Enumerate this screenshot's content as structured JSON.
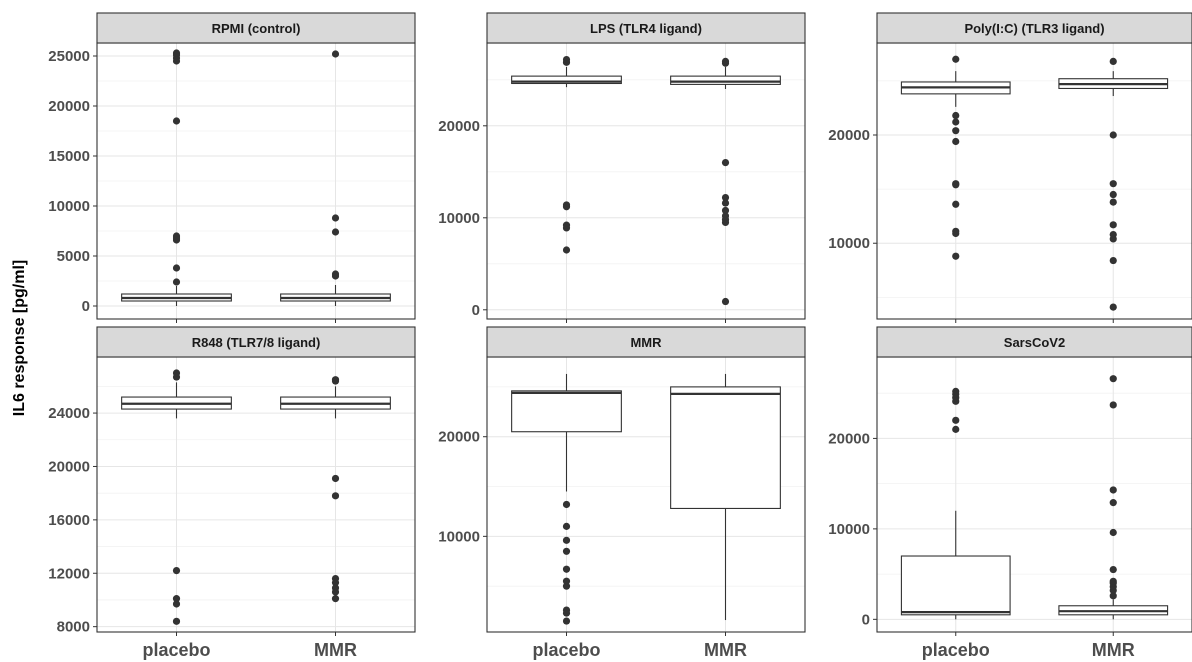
{
  "chart_data": {
    "type": "boxplot",
    "ylabel": "IL6 response [pg/ml]",
    "categories": [
      "placebo",
      "MMR"
    ],
    "grid": true,
    "panels": [
      {
        "title": "RPMI (control)",
        "ylim": [
          -1300,
          26300
        ],
        "yticks": [
          0,
          5000,
          10000,
          15000,
          20000,
          25000
        ],
        "boxes": [
          {
            "group": "placebo",
            "q1": 500,
            "median": 800,
            "q3": 1200,
            "whisker_low": 0,
            "whisker_high": 2000,
            "outliers": [
              2400,
              3800,
              6600,
              6800,
              7000,
              18500,
              24500,
              24800,
              25100,
              25300
            ]
          },
          {
            "group": "MMR",
            "q1": 500,
            "median": 800,
            "q3": 1200,
            "whisker_low": 0,
            "whisker_high": 2100,
            "outliers": [
              3000,
              3200,
              7400,
              8800,
              25200
            ]
          }
        ]
      },
      {
        "title": "LPS (TLR4 ligand)",
        "ylim": [
          -1000,
          29000
        ],
        "yticks": [
          0,
          10000,
          20000
        ],
        "boxes": [
          {
            "group": "placebo",
            "q1": 24600,
            "median": 24800,
            "q3": 25400,
            "whisker_low": 24200,
            "whisker_high": 26400,
            "outliers": [
              6500,
              8900,
              9200,
              11200,
              11400,
              26900,
              27200
            ]
          },
          {
            "group": "MMR",
            "q1": 24500,
            "median": 24800,
            "q3": 25400,
            "whisker_low": 24000,
            "whisker_high": 26400,
            "outliers": [
              900,
              9500,
              9800,
              10200,
              10800,
              11600,
              12200,
              16000,
              26800,
              27000
            ]
          }
        ]
      },
      {
        "title": "Poly(I:C) (TLR3 ligand)",
        "ylim": [
          3000,
          28500
        ],
        "yticks": [
          10000,
          20000
        ],
        "boxes": [
          {
            "group": "placebo",
            "q1": 23800,
            "median": 24400,
            "q3": 24900,
            "whisker_low": 22600,
            "whisker_high": 25900,
            "outliers": [
              8800,
              10900,
              11100,
              13600,
              15400,
              15500,
              19400,
              20400,
              21200,
              21800,
              27000
            ]
          },
          {
            "group": "MMR",
            "q1": 24300,
            "median": 24700,
            "q3": 25200,
            "whisker_low": 23600,
            "whisker_high": 25900,
            "outliers": [
              4100,
              8400,
              10400,
              10800,
              11700,
              13800,
              14500,
              15500,
              20000,
              26800
            ]
          }
        ]
      },
      {
        "title": "R848 (TLR7/8 ligand)",
        "ylim": [
          7600,
          28200
        ],
        "yticks": [
          8000,
          12000,
          16000,
          20000,
          24000
        ],
        "boxes": [
          {
            "group": "placebo",
            "q1": 24300,
            "median": 24700,
            "q3": 25200,
            "whisker_low": 23600,
            "whisker_high": 26300,
            "outliers": [
              8400,
              9700,
              10100,
              12200,
              26700,
              27000
            ]
          },
          {
            "group": "MMR",
            "q1": 24300,
            "median": 24700,
            "q3": 25200,
            "whisker_low": 23600,
            "whisker_high": 26000,
            "outliers": [
              10100,
              10600,
              10900,
              11300,
              11600,
              17800,
              19100,
              26400,
              26500
            ]
          }
        ]
      },
      {
        "title": "MMR",
        "ylim": [
          400,
          28000
        ],
        "yticks": [
          10000,
          20000
        ],
        "boxes": [
          {
            "group": "placebo",
            "q1": 20500,
            "median": 24400,
            "q3": 24600,
            "whisker_low": 14500,
            "whisker_high": 26300,
            "outliers": [
              1500,
              2300,
              2600,
              5000,
              5500,
              6700,
              8500,
              9600,
              11000,
              13200
            ]
          },
          {
            "group": "MMR",
            "q1": 12800,
            "median": 24300,
            "q3": 25000,
            "whisker_low": 1600,
            "whisker_high": 26300,
            "outliers": []
          }
        ]
      },
      {
        "title": "SarsCoV2",
        "ylim": [
          -1400,
          29000
        ],
        "yticks": [
          0,
          10000,
          20000
        ],
        "boxes": [
          {
            "group": "placebo",
            "q1": 500,
            "median": 800,
            "q3": 7000,
            "whisker_low": 0,
            "whisker_high": 12000,
            "outliers": [
              21000,
              22000,
              24100,
              24500,
              24900,
              25200
            ]
          },
          {
            "group": "MMR",
            "q1": 500,
            "median": 900,
            "q3": 1500,
            "whisker_low": 0,
            "whisker_high": 2200,
            "outliers": [
              2600,
              3200,
              3600,
              4000,
              4200,
              5500,
              9600,
              12900,
              14300,
              23700,
              26600
            ]
          }
        ]
      }
    ]
  }
}
